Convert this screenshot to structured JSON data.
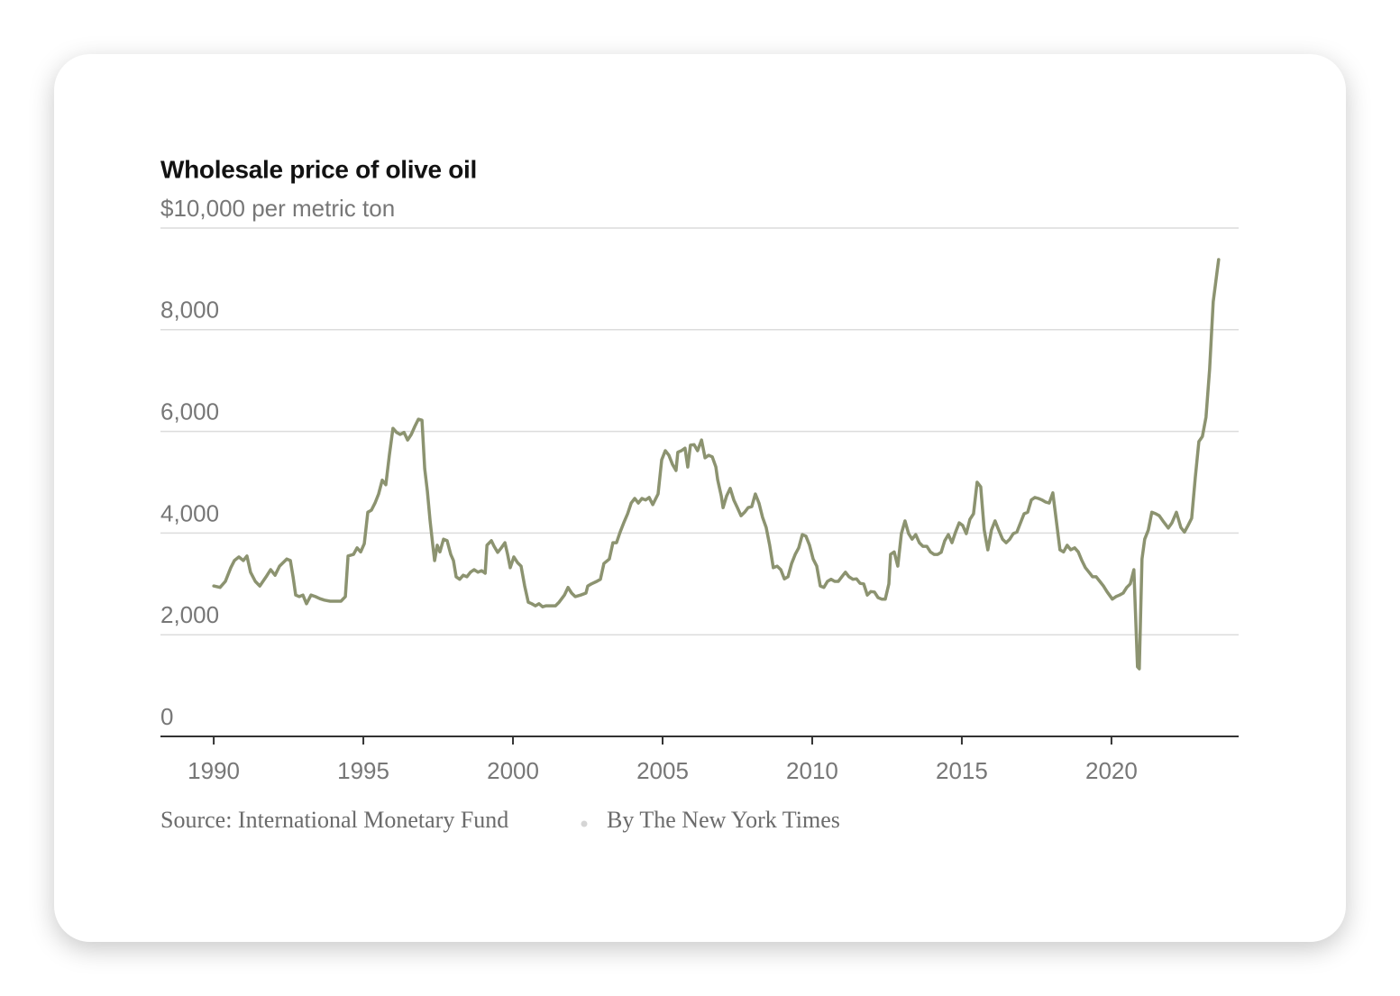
{
  "chart_data": {
    "type": "line",
    "title": "Wholesale price of olive oil",
    "source": "Source: International Monetary Fund",
    "byline": "By The New York Times",
    "color": "#8c9370",
    "xlim": [
      1988.22,
      2024.25
    ],
    "xticks": [
      1990,
      1995,
      2000,
      2005,
      2010,
      2015,
      2020
    ],
    "ylim": [
      0,
      10000
    ],
    "yticks": [
      0,
      {
        "value": 2000,
        "label": "2,000"
      },
      {
        "value": 4000,
        "label": "4,000"
      },
      {
        "value": 6000,
        "label": "6,000"
      },
      {
        "value": 8000,
        "label": "8,000"
      },
      {
        "value": 10000,
        "label": "$10,000 per metric ton"
      }
    ],
    "grid": true,
    "x": [
      1990.0,
      1990.21,
      1990.39,
      1990.57,
      1990.69,
      1990.84,
      1990.99,
      1991.11,
      1991.23,
      1991.39,
      1991.54,
      1991.75,
      1991.9,
      1992.05,
      1992.2,
      1992.44,
      1992.56,
      1992.65,
      1992.74,
      1992.86,
      1992.98,
      1993.1,
      1993.25,
      1993.4,
      1993.55,
      1993.7,
      1993.89,
      1994.07,
      1994.25,
      1994.4,
      1994.49,
      1994.67,
      1994.79,
      1994.91,
      1995.03,
      1995.15,
      1995.27,
      1995.39,
      1995.51,
      1995.63,
      1995.75,
      1995.87,
      1995.99,
      1996.11,
      1996.23,
      1996.36,
      1996.48,
      1996.6,
      1996.72,
      1996.84,
      1996.96,
      1997.05,
      1997.14,
      1997.23,
      1997.32,
      1997.38,
      1997.47,
      1997.56,
      1997.68,
      1997.8,
      1997.92,
      1998.01,
      1998.1,
      1998.22,
      1998.34,
      1998.46,
      1998.58,
      1998.7,
      1998.83,
      1998.95,
      1999.07,
      1999.13,
      1999.28,
      1999.37,
      1999.49,
      1999.61,
      1999.73,
      1999.82,
      1999.91,
      2000.03,
      2000.15,
      2000.27,
      2000.39,
      2000.51,
      2000.63,
      2000.75,
      2000.87,
      2000.99,
      2001.11,
      2001.3,
      2001.42,
      2001.54,
      2001.72,
      2001.84,
      2001.96,
      2002.08,
      2002.26,
      2002.44,
      2002.5,
      2002.62,
      2002.8,
      2002.92,
      2003.04,
      2003.22,
      2003.34,
      2003.46,
      2003.58,
      2003.7,
      2003.83,
      2003.95,
      2004.07,
      2004.19,
      2004.31,
      2004.43,
      2004.55,
      2004.67,
      2004.85,
      2004.97,
      2005.09,
      2005.21,
      2005.33,
      2005.45,
      2005.51,
      2005.63,
      2005.75,
      2005.84,
      2005.93,
      2006.05,
      2006.17,
      2006.3,
      2006.42,
      2006.54,
      2006.66,
      2006.78,
      2006.84,
      2006.96,
      2007.02,
      2007.14,
      2007.26,
      2007.38,
      2007.5,
      2007.62,
      2007.74,
      2007.86,
      2007.98,
      2008.1,
      2008.22,
      2008.34,
      2008.46,
      2008.58,
      2008.7,
      2008.83,
      2008.95,
      2009.07,
      2009.19,
      2009.31,
      2009.43,
      2009.55,
      2009.67,
      2009.79,
      2009.91,
      2010.03,
      2010.15,
      2010.27,
      2010.39,
      2010.51,
      2010.63,
      2010.75,
      2010.87,
      2010.99,
      2011.11,
      2011.23,
      2011.36,
      2011.48,
      2011.6,
      2011.72,
      2011.84,
      2011.96,
      2012.08,
      2012.2,
      2012.32,
      2012.44,
      2012.56,
      2012.62,
      2012.74,
      2012.86,
      2012.98,
      2013.1,
      2013.22,
      2013.34,
      2013.46,
      2013.58,
      2013.7,
      2013.83,
      2013.95,
      2014.07,
      2014.19,
      2014.31,
      2014.43,
      2014.55,
      2014.67,
      2014.79,
      2014.91,
      2015.03,
      2015.15,
      2015.27,
      2015.39,
      2015.51,
      2015.63,
      2015.75,
      2015.87,
      2015.99,
      2016.11,
      2016.23,
      2016.36,
      2016.48,
      2016.6,
      2016.72,
      2016.84,
      2016.96,
      2017.08,
      2017.2,
      2017.32,
      2017.44,
      2017.56,
      2017.68,
      2017.8,
      2017.92,
      2018.04,
      2018.16,
      2018.28,
      2018.4,
      2018.52,
      2018.64,
      2018.77,
      2018.89,
      2019.01,
      2019.13,
      2019.25,
      2019.37,
      2019.49,
      2019.61,
      2019.73,
      2019.85,
      2020.03,
      2020.15,
      2020.27,
      2020.39,
      2020.51,
      2020.63,
      2020.75,
      2020.87,
      2020.93,
      2021.02,
      2021.11,
      2021.23,
      2021.35,
      2021.48,
      2021.6,
      2021.72,
      2021.9,
      2022.02,
      2022.17,
      2022.32,
      2022.44,
      2022.56,
      2022.68,
      2022.8,
      2022.92,
      2023.04,
      2023.16,
      2023.28,
      2023.4,
      2023.58
    ],
    "values": [
      2960,
      2930,
      3050,
      3320,
      3460,
      3530,
      3460,
      3550,
      3230,
      3050,
      2960,
      3140,
      3280,
      3170,
      3350,
      3490,
      3460,
      3140,
      2780,
      2750,
      2780,
      2610,
      2780,
      2750,
      2710,
      2680,
      2660,
      2660,
      2660,
      2750,
      3550,
      3580,
      3710,
      3630,
      3790,
      4410,
      4450,
      4590,
      4770,
      5040,
      4950,
      5530,
      6060,
      5980,
      5940,
      5980,
      5830,
      5940,
      6100,
      6240,
      6220,
      5270,
      4820,
      4240,
      3760,
      3460,
      3760,
      3630,
      3880,
      3850,
      3580,
      3460,
      3140,
      3090,
      3170,
      3140,
      3230,
      3280,
      3230,
      3260,
      3210,
      3760,
      3850,
      3740,
      3620,
      3710,
      3810,
      3580,
      3320,
      3530,
      3420,
      3350,
      2960,
      2640,
      2610,
      2570,
      2610,
      2550,
      2570,
      2570,
      2570,
      2640,
      2780,
      2930,
      2820,
      2750,
      2780,
      2820,
      2960,
      3000,
      3050,
      3090,
      3400,
      3490,
      3810,
      3810,
      4020,
      4200,
      4380,
      4590,
      4680,
      4590,
      4680,
      4650,
      4700,
      4560,
      4770,
      5440,
      5620,
      5530,
      5350,
      5230,
      5590,
      5620,
      5670,
      5300,
      5730,
      5740,
      5620,
      5830,
      5480,
      5530,
      5500,
      5300,
      5050,
      4730,
      4500,
      4730,
      4880,
      4650,
      4500,
      4340,
      4410,
      4500,
      4520,
      4770,
      4590,
      4310,
      4110,
      3760,
      3320,
      3350,
      3280,
      3100,
      3140,
      3400,
      3580,
      3710,
      3970,
      3940,
      3760,
      3490,
      3350,
      2960,
      2930,
      3050,
      3090,
      3050,
      3050,
      3140,
      3230,
      3140,
      3090,
      3100,
      3010,
      3000,
      2780,
      2850,
      2840,
      2730,
      2700,
      2700,
      3000,
      3580,
      3630,
      3350,
      3990,
      4240,
      3990,
      3880,
      3970,
      3810,
      3740,
      3740,
      3630,
      3580,
      3580,
      3620,
      3850,
      3970,
      3810,
      4020,
      4200,
      4150,
      3990,
      4270,
      4380,
      5000,
      4910,
      4060,
      3670,
      4060,
      4240,
      4060,
      3880,
      3810,
      3880,
      3990,
      4020,
      4200,
      4380,
      4410,
      4650,
      4700,
      4680,
      4650,
      4610,
      4590,
      4790,
      4240,
      3670,
      3630,
      3760,
      3670,
      3710,
      3630,
      3460,
      3320,
      3230,
      3140,
      3140,
      3050,
      2960,
      2850,
      2700,
      2750,
      2780,
      2820,
      2930,
      3000,
      3280,
      1370,
      1330,
      3490,
      3880,
      4060,
      4410,
      4380,
      4340,
      4240,
      4100,
      4200,
      4410,
      4110,
      4020,
      4150,
      4290,
      5090,
      5800,
      5900,
      6280,
      7220,
      8550,
      9380
    ]
  }
}
